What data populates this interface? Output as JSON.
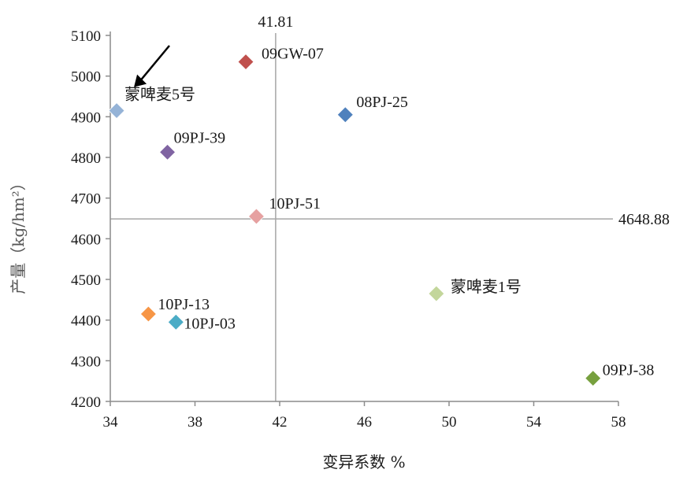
{
  "chart_data": {
    "type": "scatter",
    "xlabel": "变异系数 %",
    "ylabel": "产量（kg/hm²）",
    "xlim": [
      34,
      58
    ],
    "ylim": [
      4200,
      5100
    ],
    "x_ticks": [
      "34",
      "38",
      "42",
      "46",
      "50",
      "54",
      "58"
    ],
    "y_ticks": [
      "4200",
      "4300",
      "4400",
      "4500",
      "4600",
      "4700",
      "4800",
      "4900",
      "5000",
      "5100"
    ],
    "reference_lines": {
      "x": {
        "value": 41.81,
        "label": "41.81"
      },
      "y": {
        "value": 4648.88,
        "label": "4648.88"
      }
    },
    "points": [
      {
        "label": "09GW-07",
        "x": 40.4,
        "y": 5035,
        "color": "#c0504d"
      },
      {
        "label": "08PJ-25",
        "x": 45.1,
        "y": 4905,
        "color": "#4f81bd"
      },
      {
        "label": "蒙啤麦5号",
        "x": 34.3,
        "y": 4915,
        "color": "#95b3d7"
      },
      {
        "label": "09PJ-39",
        "x": 36.7,
        "y": 4813,
        "color": "#8064a2"
      },
      {
        "label": "10PJ-51",
        "x": 40.9,
        "y": 4655,
        "color": "#e6a1a1"
      },
      {
        "label": "蒙啤麦1号",
        "x": 49.4,
        "y": 4465,
        "color": "#c3d69b"
      },
      {
        "label": "10PJ-13",
        "x": 35.8,
        "y": 4415,
        "color": "#f79646"
      },
      {
        "label": "10PJ-03",
        "x": 37.1,
        "y": 4395,
        "color": "#4bacc6"
      },
      {
        "label": "09PJ-38",
        "x": 56.8,
        "y": 4257,
        "color": "#77a03e"
      }
    ],
    "annotation_arrow_target": "蒙啤麦5号"
  }
}
